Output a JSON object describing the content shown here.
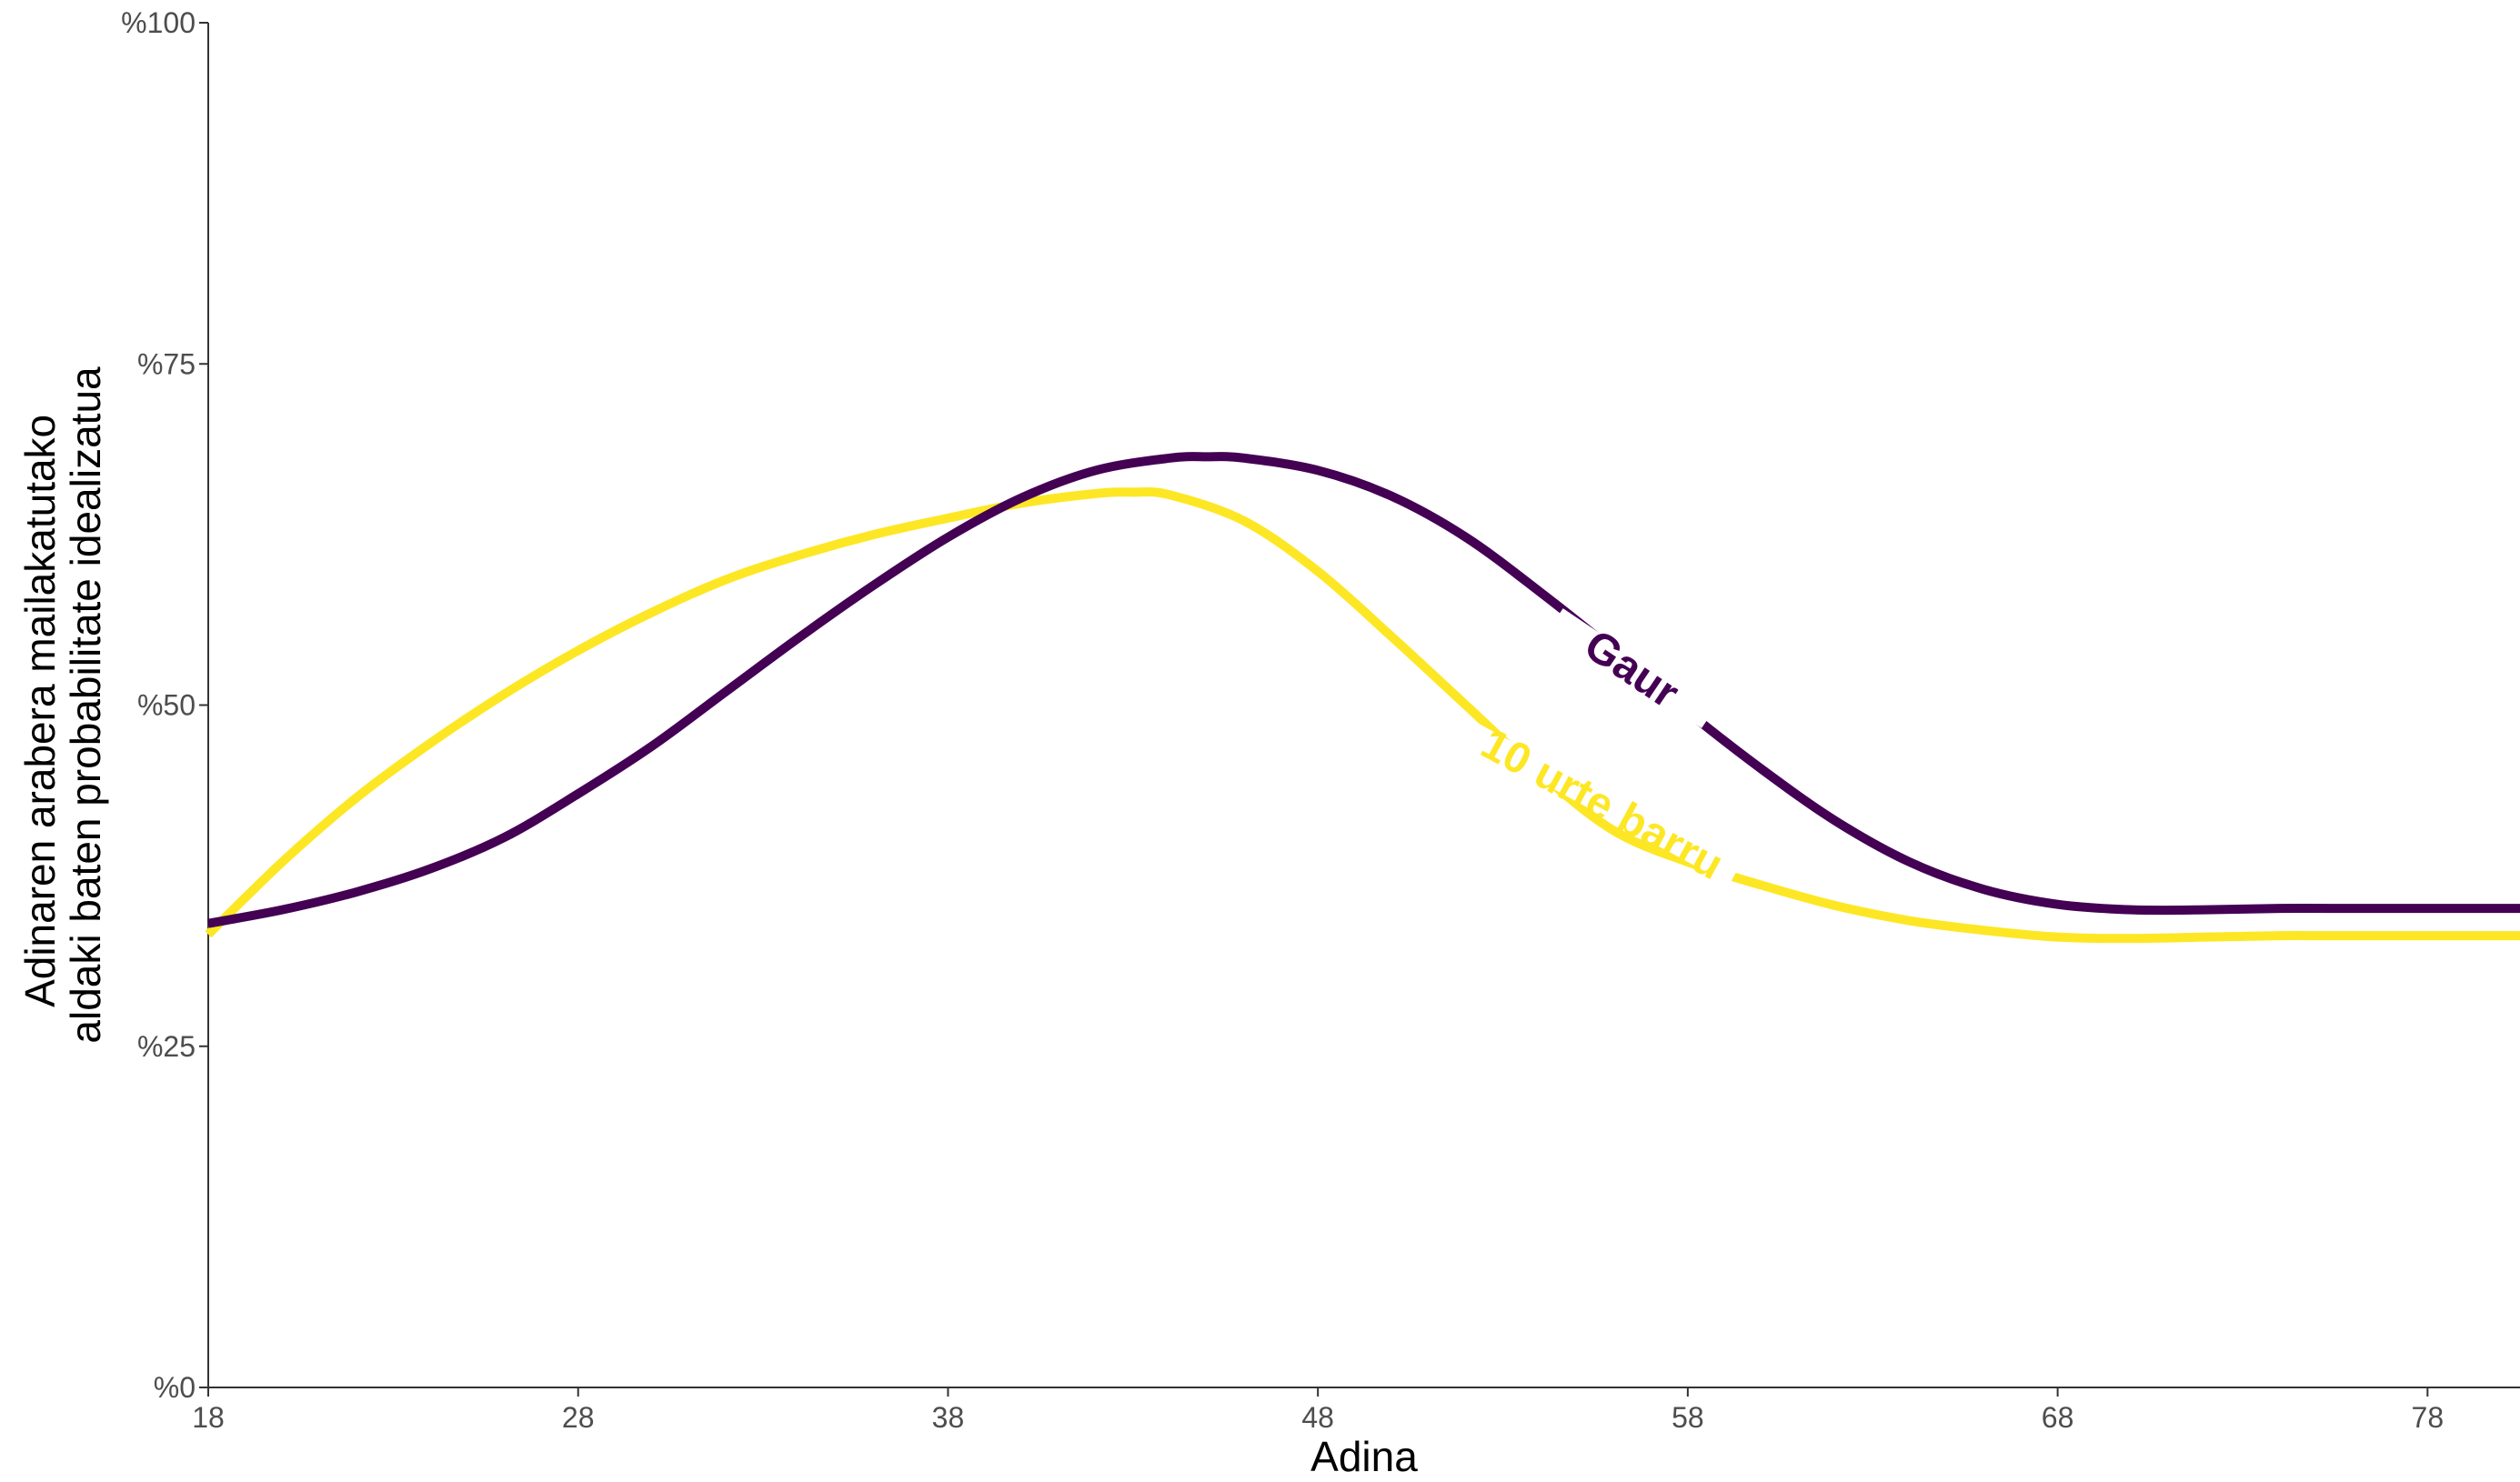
{
  "chart_data": {
    "type": "line",
    "title": "",
    "xlabel": "Adina",
    "ylabel_lines": [
      "Adinaren arabera mailakatutako",
      "aldaki baten probabilitate idealizatua"
    ],
    "xlim": [
      18,
      80.5
    ],
    "ylim": [
      0,
      100
    ],
    "x_ticks": [
      18,
      28,
      38,
      48,
      58,
      68,
      78
    ],
    "x_tick_labels": [
      "18",
      "28",
      "38",
      "48",
      "58",
      "68",
      "78"
    ],
    "y_ticks": [
      0,
      25,
      50,
      75,
      100
    ],
    "y_tick_labels": [
      "%0",
      "%25",
      "%50",
      "%75",
      "%100"
    ],
    "grid": false,
    "legend": "none (direct labels on lines)",
    "series": [
      {
        "name": "Gaur",
        "color": "#440154",
        "x": [
          18,
          20,
          22,
          24,
          26,
          28,
          30,
          32,
          34,
          36,
          38,
          40,
          42,
          44,
          45,
          46,
          48,
          50,
          52,
          54,
          56,
          58,
          60,
          62,
          64,
          66,
          68,
          70,
          72,
          74,
          76,
          78,
          80.5
        ],
        "y": [
          34,
          35,
          36.3,
          38,
          40.3,
          43.5,
          47,
          51,
          55,
          58.8,
          62.3,
          65.2,
          67.2,
          68.1,
          68.2,
          68.1,
          67.2,
          65.3,
          62.3,
          58.3,
          54,
          49.5,
          45.3,
          41.5,
          38.5,
          36.5,
          35.4,
          35,
          35,
          35.1,
          35.1,
          35.1,
          35.1
        ]
      },
      {
        "name": "10 urte barru",
        "color": "#FDE725",
        "x": [
          18,
          20,
          22,
          24,
          26,
          28,
          30,
          32,
          34,
          36,
          38,
          40,
          42,
          43,
          44,
          46,
          48,
          50,
          52,
          54,
          56,
          58,
          60,
          62,
          64,
          66,
          68,
          70,
          72,
          74,
          76,
          78,
          80.5
        ],
        "y": [
          33.2,
          38.5,
          43.2,
          47.2,
          50.8,
          54,
          56.8,
          59.2,
          61,
          62.5,
          63.7,
          64.8,
          65.5,
          65.6,
          65.4,
          63.5,
          59.8,
          55,
          50,
          45,
          40.8,
          38.5,
          36.8,
          35.3,
          34.2,
          33.5,
          33,
          32.9,
          33,
          33.1,
          33.1,
          33.1,
          33.1
        ]
      }
    ]
  }
}
